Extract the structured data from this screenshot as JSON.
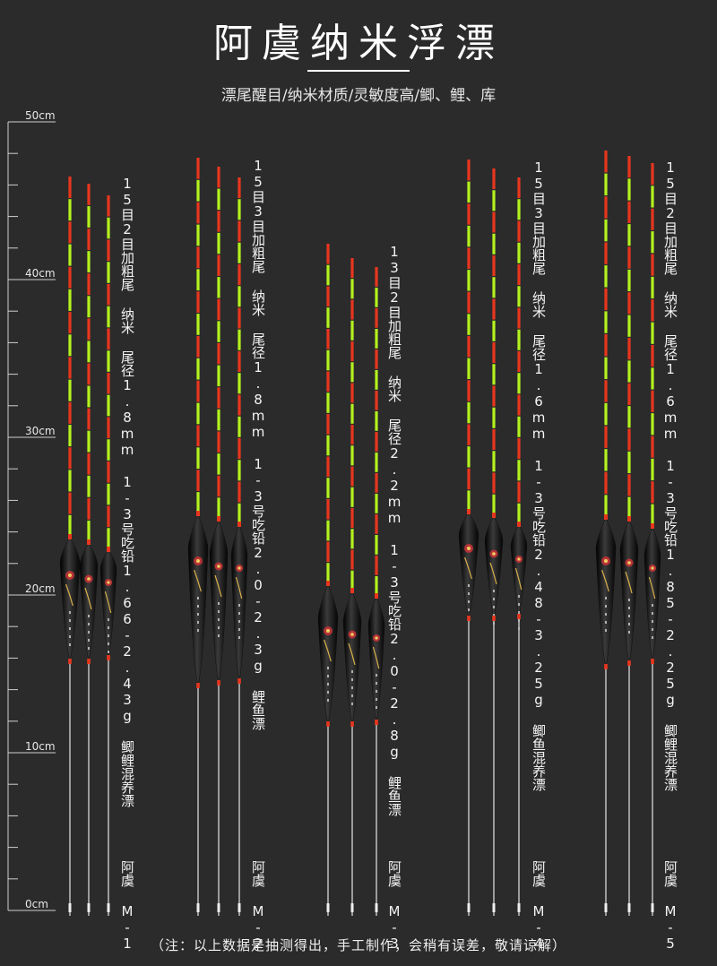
{
  "header": {
    "title": "阿虞纳米浮漂",
    "subtitle": "漂尾醒目/纳米材质/灵敏度高/鲫、鲤、库"
  },
  "ruler": {
    "unit": "cm",
    "labels": [
      "50cm",
      "40cm",
      "30cm",
      "20cm",
      "10cm",
      "0cm"
    ]
  },
  "products": [
    {
      "model": "阿虞 M-1",
      "spec": "15目2目加粗尾 纳米 尾径1.8mm 1-3号吃铅1.66-2.43g 鲫鲤混养漂"
    },
    {
      "model": "阿虞 M-2",
      "spec": "15目3目加粗尾 纳米 尾径1.8mm 1-3号吃铅2.0-2.3g 鲤鱼漂"
    },
    {
      "model": "阿虞 M-3",
      "spec": "13目2目加粗尾 纳米 尾径2.2mm 1-3号吃铅2.0-2.8g 鲤鱼漂"
    },
    {
      "model": "阿虞 M-4",
      "spec": "15目3目加粗尾 纳米 尾径1.6mm 1-3号吃铅2.48-3.25g 鲫鱼混养漂"
    },
    {
      "model": "阿虞 M-5",
      "spec": "15目2目加粗尾 纳米 尾径1.6mm 1-3号吃铅1.85-2.25g 鲫鲤混养漂"
    }
  ],
  "footer": {
    "note": "（注：以上数据是抽测得出，手工制作，会稍有误差，敬请谅解）"
  },
  "colors": {
    "background": "#2b2b2b",
    "tip_red": "#e8361e",
    "tip_green": "#b4f21e",
    "body_black": "#0c0c0c"
  }
}
